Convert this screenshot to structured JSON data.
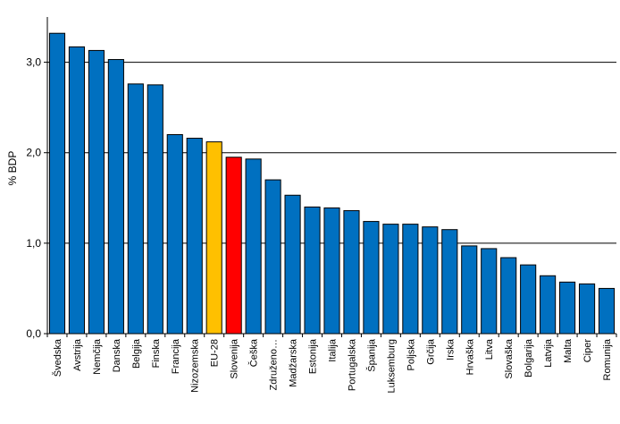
{
  "chart_data": {
    "type": "bar",
    "title": "",
    "xlabel": "",
    "ylabel": "% BDP",
    "ylim": [
      0,
      3.5
    ],
    "yticks": [
      "0,0",
      "1,0",
      "2,0",
      "3,0"
    ],
    "ytick_values": [
      0,
      1,
      2,
      3
    ],
    "grid": true,
    "legend": "none",
    "categories": [
      "Švedska",
      "Avstrija",
      "Nemčija",
      "Danska",
      "Belgija",
      "Finska",
      "Francija",
      "Nizozemska",
      "EU-28",
      "Slovenija",
      "Češka",
      "Združeno…",
      "Madžarska",
      "Estonija",
      "Italija",
      "Portugalska",
      "Španija",
      "Luksemburg",
      "Poljska",
      "Grčija",
      "Irska",
      "Hrvaška",
      "Litva",
      "Slovaška",
      "Bolgarija",
      "Latvija",
      "Malta",
      "Ciper",
      "Romunija"
    ],
    "values": [
      3.32,
      3.17,
      3.13,
      3.03,
      2.76,
      2.75,
      2.2,
      2.16,
      2.12,
      1.95,
      1.93,
      1.7,
      1.53,
      1.4,
      1.39,
      1.36,
      1.24,
      1.21,
      1.21,
      1.18,
      1.15,
      0.97,
      0.94,
      0.84,
      0.76,
      0.64,
      0.57,
      0.55,
      0.5
    ],
    "colors": {
      "default": "#0070c0",
      "EU-28": "#ffc000",
      "Slovenija": "#ff0000",
      "border": "#000000"
    }
  }
}
